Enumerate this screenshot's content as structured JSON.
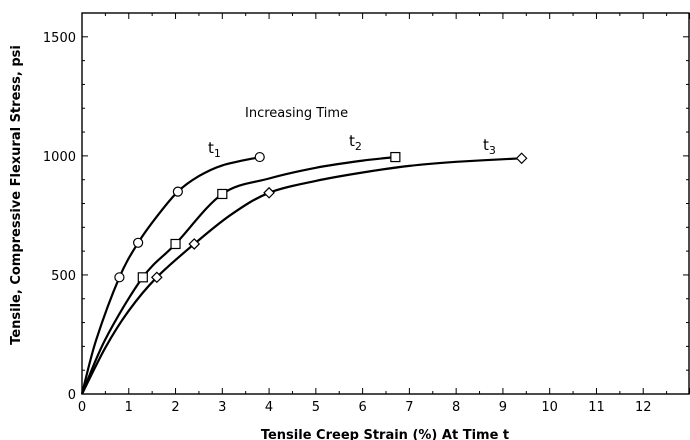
{
  "chart_data": {
    "type": "line",
    "xlabel": "Tensile Creep Strain (%) At Time t",
    "ylabel": "Tensile, Compressive Flexural Stress, psi",
    "xlim": [
      0,
      13
    ],
    "ylim": [
      0,
      1600
    ],
    "x_ticks": [
      "0",
      "1",
      "2",
      "3",
      "4",
      "5",
      "6",
      "7",
      "8",
      "9",
      "10",
      "11",
      "12"
    ],
    "y_ticks": [
      "0",
      "500",
      "1000",
      "1500"
    ],
    "annotation": "Increasing Time",
    "series": [
      {
        "name": "t1",
        "label_main": "t",
        "label_sub": "1",
        "marker": "circle",
        "points": [
          [
            0.8,
            490
          ],
          [
            1.2,
            635
          ],
          [
            2.05,
            850
          ],
          [
            3.8,
            995
          ]
        ],
        "curve": [
          [
            0,
            0
          ],
          [
            0.3,
            225
          ],
          [
            0.8,
            490
          ],
          [
            1.2,
            635
          ],
          [
            1.6,
            745
          ],
          [
            2.05,
            850
          ],
          [
            2.5,
            915
          ],
          [
            3.0,
            960
          ],
          [
            3.8,
            995
          ]
        ]
      },
      {
        "name": "t2",
        "label_main": "t",
        "label_sub": "2",
        "marker": "square",
        "points": [
          [
            1.3,
            490
          ],
          [
            2.0,
            630
          ],
          [
            3.0,
            840
          ],
          [
            6.7,
            995
          ]
        ],
        "curve": [
          [
            0,
            0
          ],
          [
            0.5,
            230
          ],
          [
            1.3,
            490
          ],
          [
            2.0,
            630
          ],
          [
            3.0,
            840
          ],
          [
            4.0,
            905
          ],
          [
            5.0,
            950
          ],
          [
            6.0,
            980
          ],
          [
            6.7,
            995
          ]
        ]
      },
      {
        "name": "t3",
        "label_main": "t",
        "label_sub": "3",
        "marker": "diamond",
        "points": [
          [
            1.6,
            490
          ],
          [
            2.4,
            630
          ],
          [
            4.0,
            845
          ],
          [
            9.4,
            990
          ]
        ],
        "curve": [
          [
            0,
            0
          ],
          [
            0.5,
            195
          ],
          [
            1.0,
            350
          ],
          [
            1.6,
            490
          ],
          [
            2.4,
            630
          ],
          [
            3.2,
            755
          ],
          [
            4.0,
            845
          ],
          [
            5.0,
            895
          ],
          [
            6.0,
            930
          ],
          [
            7.0,
            958
          ],
          [
            8.0,
            975
          ],
          [
            9.4,
            990
          ]
        ]
      }
    ]
  }
}
